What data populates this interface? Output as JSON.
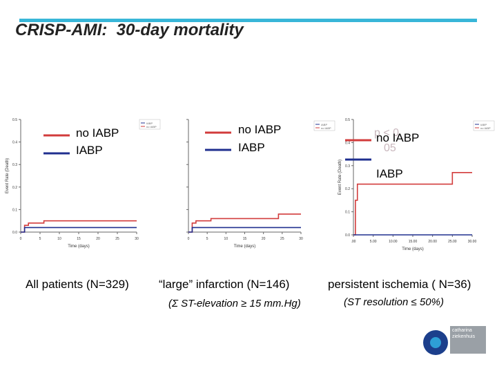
{
  "title": "CRISP-AMI:  30-day mortality",
  "legend": {
    "no_iabp": "no IABP",
    "iabp": "IABP"
  },
  "colors": {
    "no_iabp": "#d23b3b",
    "iabp": "#1f2f8f",
    "accent": "#38b6d8"
  },
  "panels": [
    {
      "caption": "All patients (N=329)",
      "subcaption": ""
    },
    {
      "caption": "“large” infarction (N=146)",
      "subcaption": "(Σ ST-elevation ≥ 15 mm.Hg)"
    },
    {
      "caption": "persistent ischemia ( N=36)",
      "subcaption": "(ST resolution ≤ 50%)"
    }
  ],
  "p_note": {
    "line1": "p < 0.",
    "line2": "05"
  },
  "logo_text": "catharina ziekenhuis",
  "chart_data": [
    {
      "type": "line",
      "xlabel": "Time (days)",
      "ylabel": "Event Rate (Death)",
      "xlim": [
        0,
        30
      ],
      "ylim": [
        0,
        0.5
      ],
      "yticks": [
        "0.0",
        "0.1",
        "0.2",
        "0.3",
        "0.4",
        "0.5"
      ],
      "xticks": [
        "0",
        "5",
        "10",
        "15",
        "20",
        "25",
        "30"
      ],
      "series": [
        {
          "name": "no IABP",
          "x": [
            0,
            1,
            2,
            6,
            30
          ],
          "y": [
            0,
            0.03,
            0.04,
            0.05,
            0.05
          ]
        },
        {
          "name": "IABP",
          "x": [
            0,
            1,
            30
          ],
          "y": [
            0,
            0.02,
            0.02
          ]
        }
      ]
    },
    {
      "type": "line",
      "xlabel": "Time (days)",
      "ylabel": "",
      "xlim": [
        0,
        30
      ],
      "ylim": [
        0,
        0.5
      ],
      "yticks": [
        "",
        "",
        "",
        "",
        "",
        ""
      ],
      "xticks": [
        "0",
        "5",
        "10",
        "15",
        "20",
        "25",
        "30"
      ],
      "series": [
        {
          "name": "no IABP",
          "x": [
            0,
            1,
            2,
            6,
            24,
            30
          ],
          "y": [
            0,
            0.04,
            0.05,
            0.06,
            0.08,
            0.08
          ]
        },
        {
          "name": "IABP",
          "x": [
            0,
            1,
            30
          ],
          "y": [
            0,
            0.02,
            0.02
          ]
        }
      ]
    },
    {
      "type": "line",
      "xlabel": "Time (days)",
      "ylabel": "Event Rate (Death)",
      "xlim": [
        0,
        30
      ],
      "ylim": [
        0,
        0.5
      ],
      "yticks": [
        "0.0",
        "0.1",
        "0.2",
        "0.3",
        "0.4",
        "0.5"
      ],
      "xticks": [
        ".00",
        "5.00",
        "10.00",
        "15.00",
        "20.00",
        "25.00",
        "30.00"
      ],
      "series": [
        {
          "name": "no IABP",
          "x": [
            0,
            0.5,
            1,
            25,
            30
          ],
          "y": [
            0,
            0.15,
            0.22,
            0.27,
            0.27
          ]
        },
        {
          "name": "IABP",
          "x": [
            0,
            30
          ],
          "y": [
            0,
            0
          ]
        }
      ]
    }
  ]
}
